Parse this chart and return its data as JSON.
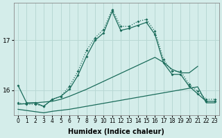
{
  "xlabel": "Humidex (Indice chaleur)",
  "background_color": "#d4edea",
  "grid_color": "#b8d8d4",
  "line_color": "#1a6b5a",
  "xlim": [
    -0.5,
    23.5
  ],
  "ylim": [
    15.5,
    17.75
  ],
  "yticks": [
    16,
    17
  ],
  "xticks": [
    0,
    1,
    2,
    3,
    4,
    5,
    6,
    7,
    8,
    9,
    10,
    11,
    12,
    13,
    14,
    15,
    16,
    17,
    18,
    19,
    20,
    21,
    22,
    23
  ],
  "series": {
    "dotted": {
      "x": [
        0,
        1,
        2,
        3,
        4,
        5,
        6,
        7,
        8,
        9,
        10,
        11,
        12,
        13,
        14,
        15,
        16,
        17,
        18,
        19,
        20,
        21,
        22,
        23
      ],
      "y": [
        15.75,
        15.72,
        15.72,
        15.68,
        15.82,
        15.88,
        16.08,
        16.38,
        16.8,
        17.05,
        17.22,
        17.62,
        17.28,
        17.28,
        17.38,
        17.42,
        17.18,
        16.62,
        16.38,
        16.38,
        16.12,
        15.98,
        15.82,
        15.82
      ]
    },
    "solid_main": {
      "x": [
        0,
        1,
        2,
        3,
        4,
        5,
        6,
        7,
        8,
        9,
        10,
        11,
        12,
        13,
        14,
        15,
        16,
        17,
        18,
        19,
        20,
        21,
        22,
        23
      ],
      "y": [
        16.1,
        15.75,
        15.75,
        15.68,
        15.82,
        15.88,
        16.02,
        16.3,
        16.68,
        17.0,
        17.15,
        17.58,
        17.2,
        17.24,
        17.3,
        17.36,
        17.12,
        16.55,
        16.32,
        16.32,
        16.08,
        15.93,
        15.78,
        15.78
      ]
    },
    "linear_upper": {
      "x": [
        0,
        4,
        5,
        6,
        7,
        8,
        9,
        10,
        11,
        12,
        13,
        14,
        15,
        16,
        17,
        18,
        19,
        20,
        21
      ],
      "y": [
        15.72,
        15.78,
        15.82,
        15.88,
        15.95,
        16.02,
        16.1,
        16.18,
        16.26,
        16.34,
        16.42,
        16.5,
        16.58,
        16.66,
        16.56,
        16.42,
        16.35,
        16.35,
        16.48
      ]
    },
    "linear_lower": {
      "x": [
        0,
        3,
        4,
        5,
        6,
        7,
        8,
        9,
        10,
        11,
        12,
        13,
        14,
        15,
        16,
        17,
        18,
        19,
        20,
        21,
        22,
        23
      ],
      "y": [
        15.62,
        15.55,
        15.58,
        15.6,
        15.62,
        15.65,
        15.68,
        15.71,
        15.74,
        15.77,
        15.8,
        15.83,
        15.86,
        15.89,
        15.92,
        15.95,
        15.98,
        16.01,
        16.04,
        16.07,
        15.75,
        15.75
      ]
    }
  }
}
